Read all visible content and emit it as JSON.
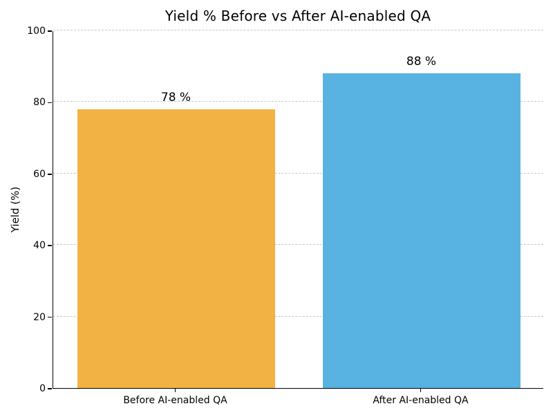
{
  "chart_data": {
    "type": "bar",
    "title": "Yield % Before vs After AI-enabled QA",
    "xlabel": "",
    "ylabel": "Yield (%)",
    "categories": [
      "Before AI-enabled QA",
      "After AI-enabled QA"
    ],
    "values": [
      78,
      88
    ],
    "value_labels": [
      "78 %",
      "88 %"
    ],
    "bar_colors": [
      "#F2B344",
      "#58B2E2"
    ],
    "ylim": [
      0,
      100
    ],
    "yticks": [
      0,
      20,
      40,
      60,
      80,
      100
    ],
    "grid": "horizontal dashed",
    "grid_color": "#c8c8c8",
    "legend": "none",
    "background_color": "#ffffff",
    "text_color": "#000000"
  }
}
